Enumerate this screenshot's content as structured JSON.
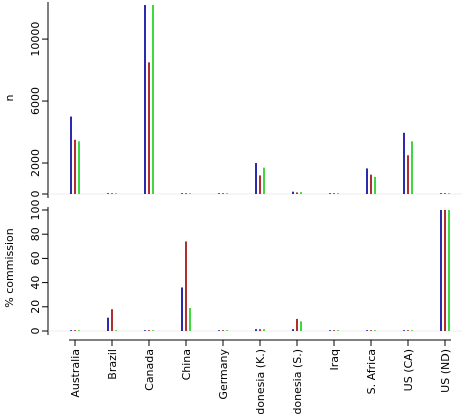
{
  "colors": {
    "series1": "#2b2bb0",
    "series2": "#b03030",
    "series3": "#40d840",
    "axis": "#000000",
    "background": "#ffffff"
  },
  "chart_data": [
    {
      "type": "bar",
      "ylabel": "n",
      "ylim": [
        0,
        12200
      ],
      "yticks": [
        "0",
        "2000",
        "6000",
        "10000"
      ],
      "ytick_values": [
        0,
        2000,
        6000,
        10000
      ],
      "categories": [
        "Australia",
        "Brazil",
        "Canada",
        "China",
        "Germany",
        "Indonesia (K.)",
        "Indonesia (S.)",
        "Iraq",
        "S. Africa",
        "US (CA)",
        "US (ND)"
      ],
      "series": [
        {
          "values": [
            5000,
            50,
            12200,
            50,
            40,
            2000,
            150,
            40,
            1650,
            3950,
            40
          ]
        },
        {
          "values": [
            3500,
            50,
            8500,
            50,
            40,
            1200,
            100,
            40,
            1250,
            2500,
            40
          ]
        },
        {
          "values": [
            3400,
            50,
            12200,
            50,
            40,
            1700,
            120,
            40,
            1100,
            3400,
            40
          ]
        }
      ]
    },
    {
      "type": "bar",
      "ylabel": "% commission",
      "ylim": [
        0,
        100
      ],
      "yticks": [
        "0",
        "20",
        "40",
        "60",
        "80",
        "100"
      ],
      "ytick_values": [
        0,
        20,
        40,
        60,
        80,
        100
      ],
      "categories": [
        "Australia",
        "Brazil",
        "Canada",
        "China",
        "Germany",
        "Indonesia (K.)",
        "Indonesia (S.)",
        "Iraq",
        "S. Africa",
        "US (CA)",
        "US (ND)"
      ],
      "series": [
        {
          "values": [
            0.5,
            11,
            0.5,
            36,
            0.5,
            1.5,
            1.5,
            0,
            0.5,
            0.5,
            100
          ]
        },
        {
          "values": [
            0.5,
            18,
            0.5,
            74,
            0.5,
            1.5,
            10,
            0,
            0.5,
            0.5,
            100
          ]
        },
        {
          "values": [
            0.5,
            0,
            0.5,
            19,
            0.5,
            1.5,
            8,
            0,
            0.5,
            0.5,
            100
          ]
        }
      ]
    }
  ]
}
